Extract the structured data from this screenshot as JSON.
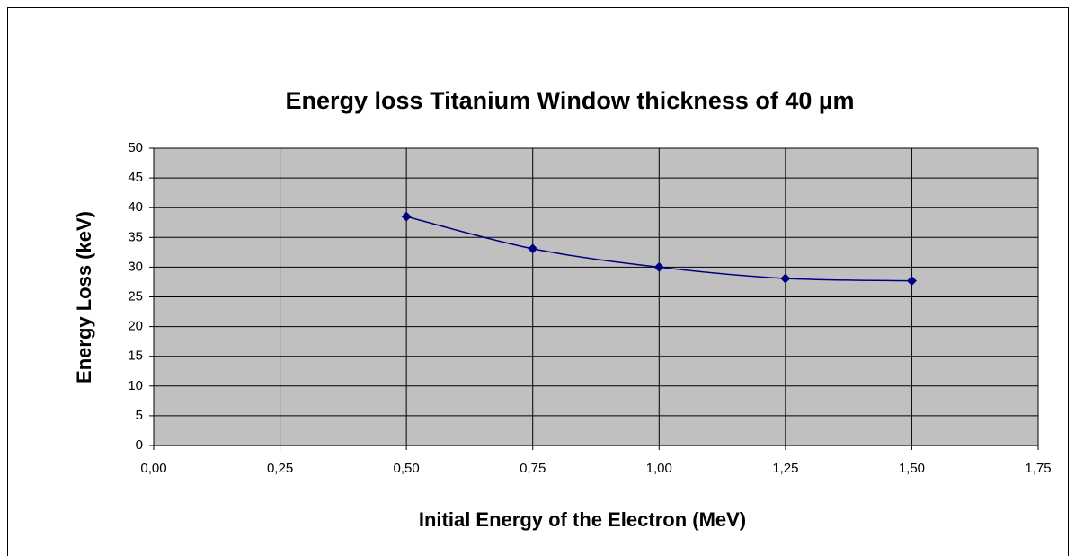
{
  "chart_data": {
    "type": "line",
    "title": "Energy loss Titanium Window  thickness of 40 µm",
    "x_label": "Initial Energy of the Electron (MeV)",
    "y_label": "Energy Loss (keV)",
    "x": [
      0.5,
      0.75,
      1.0,
      1.25,
      1.5
    ],
    "series": [
      {
        "name": "Energy loss",
        "color": "#000080",
        "values": [
          38.5,
          33.1,
          30.0,
          28.1,
          27.7
        ]
      }
    ],
    "xlim": [
      0,
      1.75
    ],
    "xticks": [
      {
        "value": 0,
        "label": "0,00"
      },
      {
        "value": 0.25,
        "label": "0,25"
      },
      {
        "value": 0.5,
        "label": "0,50"
      },
      {
        "value": 0.75,
        "label": "0,75"
      },
      {
        "value": 1.0,
        "label": "1,00"
      },
      {
        "value": 1.25,
        "label": "1,25"
      },
      {
        "value": 1.5,
        "label": "1,50"
      },
      {
        "value": 1.75,
        "label": "1,75"
      }
    ],
    "ylim": [
      0,
      50
    ],
    "yticks": [
      0,
      5,
      10,
      15,
      20,
      25,
      30,
      35,
      40,
      45,
      50
    ],
    "grid": true,
    "plot_background": "#c0c0c0",
    "smooth": true
  }
}
